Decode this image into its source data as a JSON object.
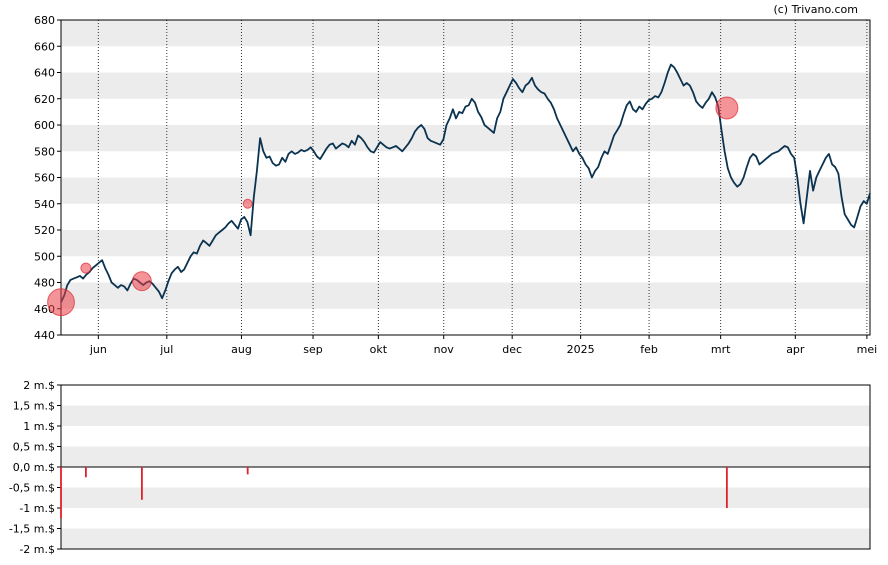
{
  "credit": "(c) Trivano.com",
  "chart_data": [
    {
      "type": "line",
      "title": "",
      "xlabel": "",
      "ylabel": "",
      "ylim": [
        440,
        680
      ],
      "y_ticks": [
        440,
        460,
        480,
        500,
        520,
        540,
        560,
        580,
        600,
        620,
        640,
        660,
        680
      ],
      "x_tick_labels": [
        "jun",
        "jul",
        "aug",
        "sep",
        "okt",
        "nov",
        "dec",
        "2025",
        "feb",
        "mrt",
        "apr",
        "mei"
      ],
      "x_tick_positions": [
        12,
        34,
        58,
        81,
        102,
        123,
        145,
        167,
        189,
        212,
        236,
        259
      ],
      "x_range": [
        0,
        260
      ],
      "grid": "horizontal bands, vertical dotted lines at month starts",
      "line_color": "#0b3350",
      "series": [
        {
          "values": [
            465,
            470,
            478,
            482,
            483,
            484,
            485,
            483,
            486,
            488,
            491,
            493,
            495,
            497,
            491,
            486,
            480,
            478,
            476,
            478,
            477,
            474,
            479,
            483,
            482,
            480,
            478,
            480,
            481,
            479,
            476,
            473,
            468,
            474,
            481,
            487,
            490,
            492,
            488,
            490,
            495,
            500,
            503,
            502,
            508,
            512,
            510,
            508,
            512,
            516,
            518,
            520,
            522,
            525,
            527,
            524,
            521,
            528,
            530,
            526,
            516,
            545,
            565,
            590,
            580,
            575,
            576,
            571,
            569,
            570,
            575,
            572,
            578,
            580,
            578,
            579,
            581,
            580,
            581,
            583,
            580,
            576,
            574,
            578,
            582,
            585,
            586,
            582,
            584,
            586,
            585,
            583,
            588,
            585,
            592,
            590,
            587,
            583,
            580,
            579,
            583,
            587,
            585,
            583,
            582,
            583,
            584,
            582,
            580,
            583,
            586,
            590,
            595,
            598,
            600,
            597,
            590,
            588,
            587,
            586,
            585,
            589,
            600,
            605,
            612,
            605,
            610,
            609,
            614,
            615,
            620,
            617,
            610,
            606,
            600,
            598,
            596,
            594,
            605,
            610,
            620,
            625,
            630,
            635,
            632,
            628,
            625,
            630,
            632,
            636,
            630,
            627,
            625,
            624,
            620,
            617,
            612,
            605,
            600,
            595,
            590,
            585,
            580,
            583,
            578,
            575,
            570,
            567,
            560,
            565,
            568,
            575,
            580,
            578,
            585,
            592,
            596,
            600,
            608,
            615,
            618,
            612,
            610,
            614,
            612,
            616,
            619,
            620,
            622,
            621,
            625,
            632,
            640,
            646,
            644,
            640,
            635,
            630,
            632,
            630,
            625,
            618,
            615,
            613,
            617,
            620,
            625,
            621,
            614,
            596,
            580,
            567,
            560,
            556,
            553,
            555,
            560,
            568,
            575,
            578,
            576,
            570,
            572,
            574,
            576,
            578,
            579,
            580,
            582,
            584,
            583,
            578,
            575,
            560,
            540,
            525,
            545,
            565,
            550,
            560,
            565,
            570,
            575,
            578,
            570,
            568,
            563,
            545,
            532,
            528,
            524,
            522,
            530,
            538,
            542,
            540,
            548
          ]
        }
      ],
      "trade_markers": [
        {
          "x": 0,
          "y": 465,
          "magnitude": 1.3
        },
        {
          "x": 8,
          "y": 491,
          "magnitude": 0.25
        },
        {
          "x": 26,
          "y": 481,
          "magnitude": 0.8
        },
        {
          "x": 60,
          "y": 540,
          "magnitude": 0.18
        },
        {
          "x": 214,
          "y": 613,
          "magnitude": 1.0
        }
      ]
    },
    {
      "type": "bar",
      "title": "",
      "ylabel": "",
      "ylim": [
        -2,
        2
      ],
      "y_tick_labels": [
        "2 m.$",
        "1,5 m.$",
        "1 m.$",
        "0,5 m.$",
        "0,0 m.$",
        "-0,5 m.$",
        "-1 m.$",
        "-1,5 m.$",
        "-2 m.$"
      ],
      "y_ticks": [
        2,
        1.5,
        1,
        0.5,
        0,
        -0.5,
        -1,
        -1.5,
        -2
      ],
      "bar_color": "#e0202a",
      "bars": [
        {
          "x": 0,
          "value": -1.25
        },
        {
          "x": 8,
          "value": -0.25
        },
        {
          "x": 26,
          "value": -0.8
        },
        {
          "x": 60,
          "value": -0.18
        },
        {
          "x": 214,
          "value": -1.0
        }
      ]
    }
  ]
}
